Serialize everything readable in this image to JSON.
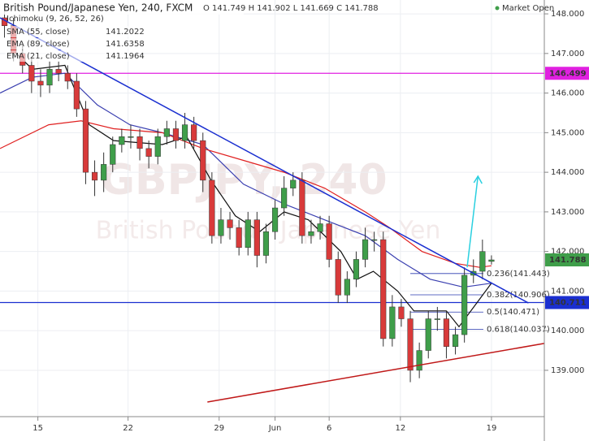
{
  "chart_data": {
    "type": "candlestick",
    "title": "British Pound/Japanese Yen, 240, FXCM",
    "ohlc_header": "O 141.749 H 141.902 L 141.669 C 141.788",
    "status": "Market Open",
    "watermark": [
      "GBPJPY, 240",
      "British Pound / Japanese Yen"
    ],
    "indicator_label": "Ichimoku (9, 26, 52, 26)",
    "up_color": "#3f9e4a",
    "down_color": "#d83a3a",
    "open": [
      147.9,
      147.7,
      147.0,
      146.7,
      146.3,
      146.2,
      146.6,
      146.5,
      146.3,
      145.6,
      144.0,
      143.8,
      144.2,
      144.7,
      144.9,
      144.9,
      144.6,
      144.4,
      144.9,
      145.1,
      144.8,
      145.2,
      144.8,
      143.8,
      142.4,
      142.8,
      142.6,
      142.1,
      142.8,
      141.9,
      142.5,
      143.1,
      143.6,
      143.8,
      142.4,
      142.5,
      142.7,
      141.8,
      140.9,
      141.3,
      141.8,
      142.3,
      142.3,
      139.8,
      140.6,
      140.3,
      139.0,
      139.5,
      140.3,
      140.3,
      139.6,
      139.9,
      141.4,
      141.5,
      141.749
    ],
    "high": [
      148.1,
      147.9,
      147.2,
      146.9,
      146.6,
      146.8,
      146.8,
      146.7,
      146.5,
      145.8,
      144.3,
      144.5,
      144.9,
      145.1,
      145.2,
      145.1,
      144.8,
      145.1,
      145.3,
      145.3,
      145.5,
      145.4,
      145.0,
      144.0,
      143.1,
      143.0,
      142.8,
      143.0,
      143.0,
      142.7,
      143.3,
      143.9,
      144.0,
      144.0,
      142.8,
      142.9,
      142.9,
      142.0,
      141.5,
      142.0,
      142.6,
      142.5,
      142.5,
      140.9,
      140.8,
      140.5,
      139.7,
      140.5,
      140.6,
      140.5,
      140.1,
      141.6,
      141.8,
      142.3,
      141.902
    ],
    "low": [
      147.4,
      146.8,
      146.5,
      146.0,
      145.9,
      146.0,
      146.3,
      146.1,
      145.4,
      143.7,
      143.4,
      143.5,
      144.0,
      144.5,
      144.6,
      144.3,
      144.1,
      144.2,
      144.7,
      144.6,
      144.6,
      144.6,
      143.5,
      142.2,
      142.2,
      142.3,
      141.9,
      141.9,
      141.6,
      141.7,
      142.3,
      142.9,
      143.4,
      142.2,
      142.2,
      142.3,
      141.6,
      140.7,
      140.7,
      141.1,
      141.6,
      142.0,
      139.6,
      139.6,
      140.1,
      138.7,
      138.8,
      139.3,
      140.0,
      139.3,
      139.4,
      139.7,
      141.2,
      141.3,
      141.669
    ],
    "close": [
      147.7,
      147.0,
      146.7,
      146.3,
      146.2,
      146.6,
      146.5,
      146.3,
      145.6,
      144.0,
      143.8,
      144.2,
      144.7,
      144.9,
      144.9,
      144.6,
      144.4,
      144.9,
      145.1,
      144.8,
      145.2,
      144.8,
      143.8,
      142.4,
      142.8,
      142.6,
      142.1,
      142.8,
      141.9,
      142.5,
      143.1,
      143.6,
      143.8,
      142.4,
      142.5,
      142.7,
      141.8,
      140.9,
      141.3,
      141.8,
      142.3,
      142.3,
      139.8,
      140.6,
      140.3,
      139.0,
      139.5,
      140.3,
      140.3,
      139.6,
      139.9,
      141.4,
      141.5,
      142.0,
      141.788
    ],
    "last_price": {
      "value": 141.788,
      "label": "141.788",
      "color": "#3f9e4a"
    },
    "series": [
      {
        "name": "SMA (55, close)",
        "color": "#3a3fb0",
        "last": 141.2022,
        "x": [
          0,
          3.6,
          7.2,
          10.8,
          14.4,
          18,
          22.5,
          27,
          31.5,
          36,
          40.5,
          44.1,
          47.7,
          51.4,
          54.5
        ],
        "values": [
          146.0,
          146.4,
          146.5,
          145.7,
          145.2,
          145.0,
          144.7,
          143.7,
          143.2,
          142.8,
          142.4,
          141.8,
          141.3,
          141.1,
          141.2
        ]
      },
      {
        "name": "EMA (89, close)",
        "color": "#e02020",
        "last": 141.6358,
        "x": [
          0,
          5.4,
          9,
          12.6,
          18,
          22.5,
          27,
          31.5,
          36,
          40.5,
          43.2,
          46.8,
          50.5,
          53.2,
          54.5
        ],
        "values": [
          144.6,
          145.2,
          145.3,
          145.1,
          145.0,
          144.6,
          144.3,
          144.0,
          143.6,
          143.0,
          142.6,
          142.0,
          141.7,
          141.6,
          141.64
        ]
      },
      {
        "name": "EMA (21, close)",
        "color": "#111111",
        "last": 141.1964,
        "x": [
          1.8,
          3.6,
          7.2,
          9.9,
          12.6,
          18,
          20.7,
          23.4,
          26.1,
          28.8,
          31.5,
          34.2,
          37.8,
          39.6,
          41.4,
          44.1,
          45.9,
          49.5,
          50.9,
          53.2,
          54.5
        ],
        "values": [
          147.0,
          146.6,
          146.7,
          145.2,
          144.8,
          144.7,
          144.9,
          143.8,
          142.9,
          142.5,
          143.0,
          142.8,
          142.0,
          141.3,
          141.5,
          141.0,
          140.5,
          140.5,
          140.1,
          140.8,
          141.2
        ]
      }
    ],
    "trendlines": [
      {
        "color": "#1a2fd0",
        "x": [
          0,
          58.6
        ],
        "y": [
          147.9,
          140.7
        ]
      },
      {
        "color": "#c01818",
        "x": [
          23,
          60.4
        ],
        "y": [
          138.2,
          139.68
        ]
      }
    ],
    "hlines": [
      {
        "value": 146.499,
        "label": "146.499",
        "color": "#e020e0"
      },
      {
        "value": 140.711,
        "label": "140.711",
        "color": "#1a2fd0"
      }
    ],
    "fib_x": [
      45.5,
      53.6
    ],
    "fib_levels": [
      {
        "value": 141.443,
        "label": "0.236(141.443)"
      },
      {
        "value": 140.906,
        "label": "0.382(140.906)"
      },
      {
        "value": 140.471,
        "label": "0.5(140.471)"
      },
      {
        "value": 140.037,
        "label": "0.618(140.037)"
      }
    ],
    "arrow": {
      "color": "#2ad0e0",
      "x": [
        51.8,
        53.0
      ],
      "y": [
        141.6,
        143.9
      ]
    },
    "xlim": [
      0,
      60
    ],
    "xticks": [
      {
        "value": 4.2,
        "label": "15"
      },
      {
        "value": 14.2,
        "label": "22"
      },
      {
        "value": 24.3,
        "label": "29"
      },
      {
        "value": 30.5,
        "label": "Jun"
      },
      {
        "value": 36.5,
        "label": "6"
      },
      {
        "value": 44.4,
        "label": "12"
      },
      {
        "value": 54.5,
        "label": "19"
      }
    ],
    "ylim": [
      137.83,
      148.35
    ],
    "yticks": [
      {
        "value": 148,
        "label": "148.000"
      },
      {
        "value": 147,
        "label": "147.000"
      },
      {
        "value": 146,
        "label": "146.000"
      },
      {
        "value": 145,
        "label": "145.000"
      },
      {
        "value": 144,
        "label": "144.000"
      },
      {
        "value": 143,
        "label": "143.000"
      },
      {
        "value": 142,
        "label": "142.000"
      },
      {
        "value": 141,
        "label": "141.000"
      },
      {
        "value": 140,
        "label": "140.000"
      },
      {
        "value": 139,
        "label": "139.000"
      }
    ],
    "grid": true
  }
}
